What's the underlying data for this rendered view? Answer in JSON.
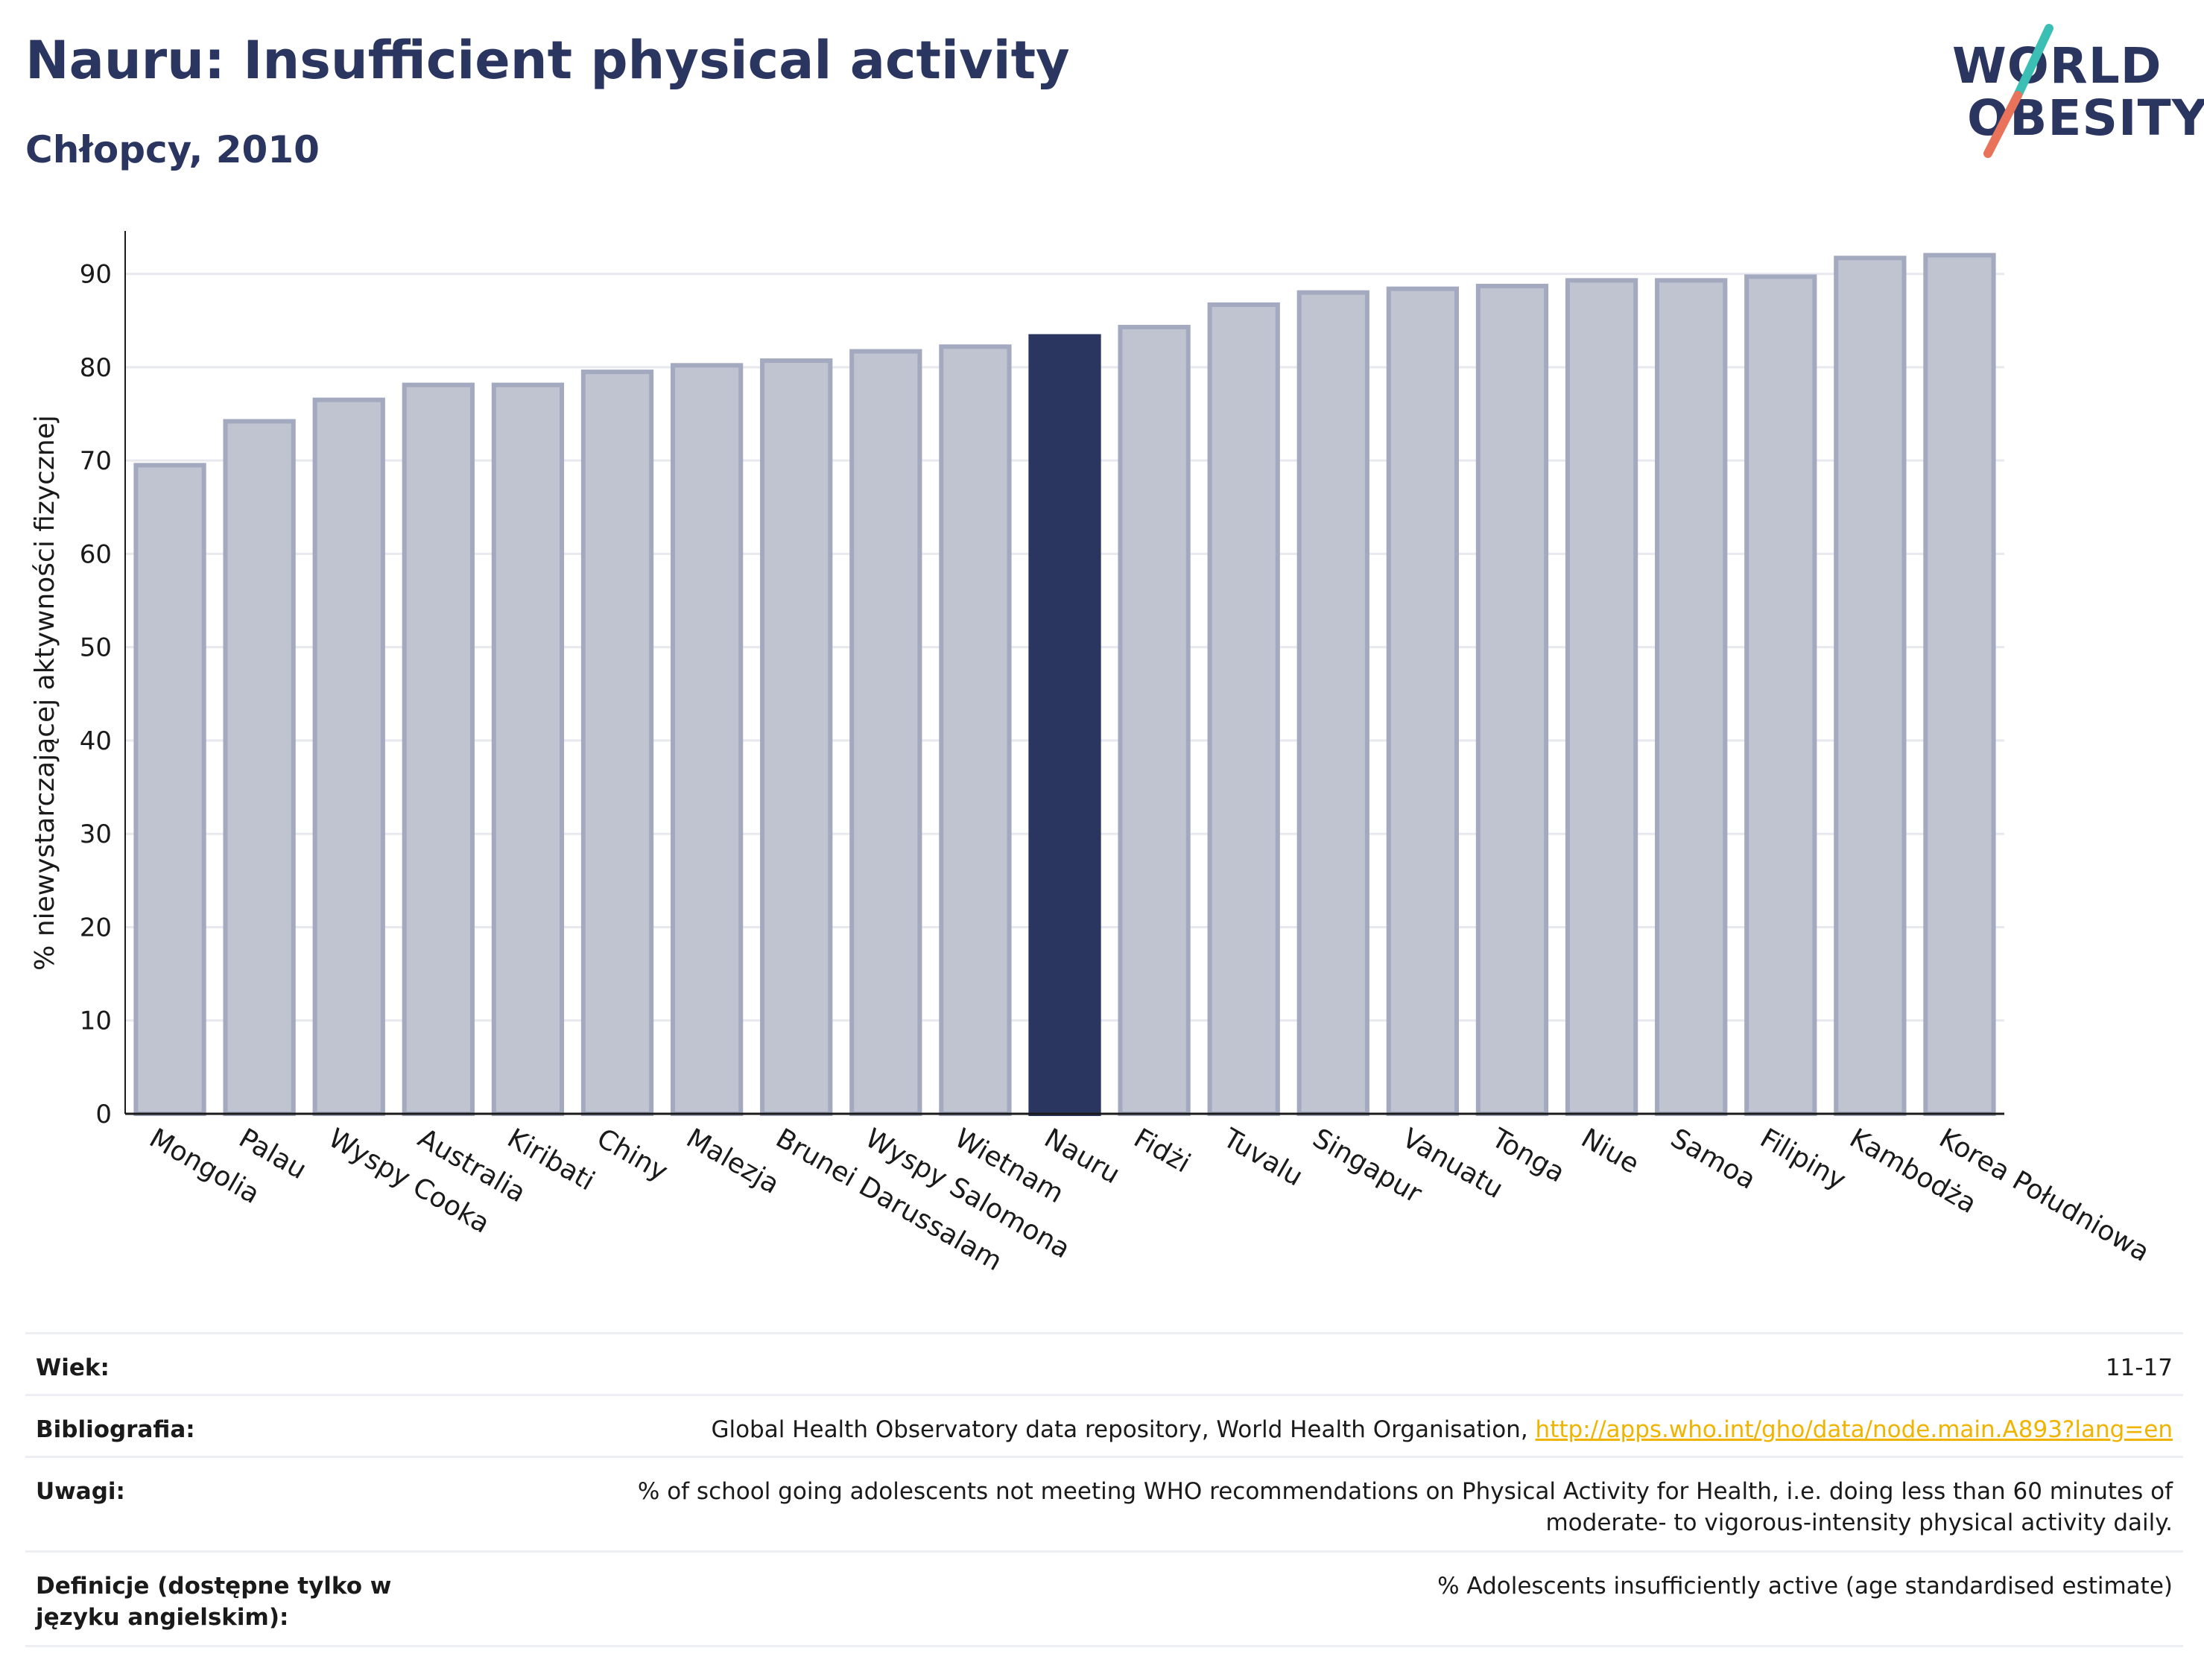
{
  "header": {
    "title": "Nauru: Insufficient physical activity",
    "subtitle": "Chłopcy, 2010"
  },
  "logo": {
    "line1": "WORLD",
    "line2": "OBESITY",
    "colors": {
      "text": "#2a3560",
      "slash_top": "#3bbfb4",
      "slash_bottom": "#e8735a"
    }
  },
  "chart_data": {
    "type": "bar",
    "categories": [
      "Mongolia",
      "Palau",
      "Wyspy Cooka",
      "Australia",
      "Kiribati",
      "Chiny",
      "Malezja",
      "Brunei Darussalam",
      "Wyspy Salomona",
      "Wietnam",
      "Nauru",
      "Fidżi",
      "Tuvalu",
      "Singapur",
      "Vanuatu",
      "Tonga",
      "Niue",
      "Samoa",
      "Filipiny",
      "Kambodża",
      "Korea Południowa"
    ],
    "values": [
      69.5,
      74.2,
      76.5,
      78.1,
      78.1,
      79.5,
      80.2,
      80.7,
      81.7,
      82.2,
      83.3,
      84.3,
      86.7,
      88.0,
      88.4,
      88.7,
      89.3,
      89.3,
      89.7,
      91.7,
      92.0
    ],
    "highlight": "Nauru",
    "ylabel": "% niewystarczającej aktywności fizycznej",
    "ylim": [
      0,
      93
    ],
    "yticks": [
      0,
      10,
      20,
      30,
      40,
      50,
      60,
      70,
      80,
      90
    ],
    "grid": true,
    "colors": {
      "bar": "#c0c3d0",
      "bar_border": "#a3a9bf",
      "highlight": "#2a3560",
      "grid": "#e8e9ee"
    }
  },
  "meta": [
    {
      "label": "Wiek:",
      "value": "11-17"
    },
    {
      "label": "Bibliografia:",
      "value": "Global Health Observatory data repository, World Health Organisation, ",
      "link": "http://apps.who.int/gho/data/node.main.A893?lang=en"
    },
    {
      "label": "Uwagi:",
      "value": "% of school going adolescents not meeting WHO recommendations on Physical Activity for Health, i.e. doing less than 60 minutes of moderate- to vigorous-intensity physical activity daily."
    },
    {
      "label": "Definicje (dostępne tylko w języku angielskim):",
      "value": "% Adolescents insufficiently active (age standardised estimate)"
    }
  ]
}
